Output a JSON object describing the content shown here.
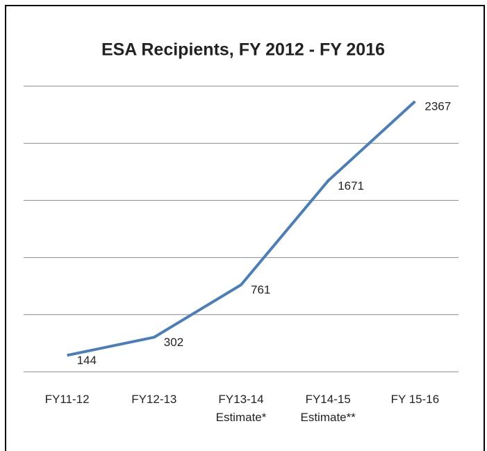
{
  "chart_data": {
    "type": "line",
    "title": "ESA Recipients, FY 2012 - FY 2016",
    "categories": [
      "FY11-12",
      "FY12-13",
      "FY13-14\nEstimate*",
      "FY14-15\nEstimate**",
      "FY 15-16"
    ],
    "values": [
      144,
      302,
      761,
      1671,
      2367
    ],
    "color": "#4a7ebb",
    "ylim": [
      0,
      2500
    ],
    "yticks": [
      0,
      500,
      1000,
      1500,
      2000,
      2500
    ],
    "grid": true
  }
}
